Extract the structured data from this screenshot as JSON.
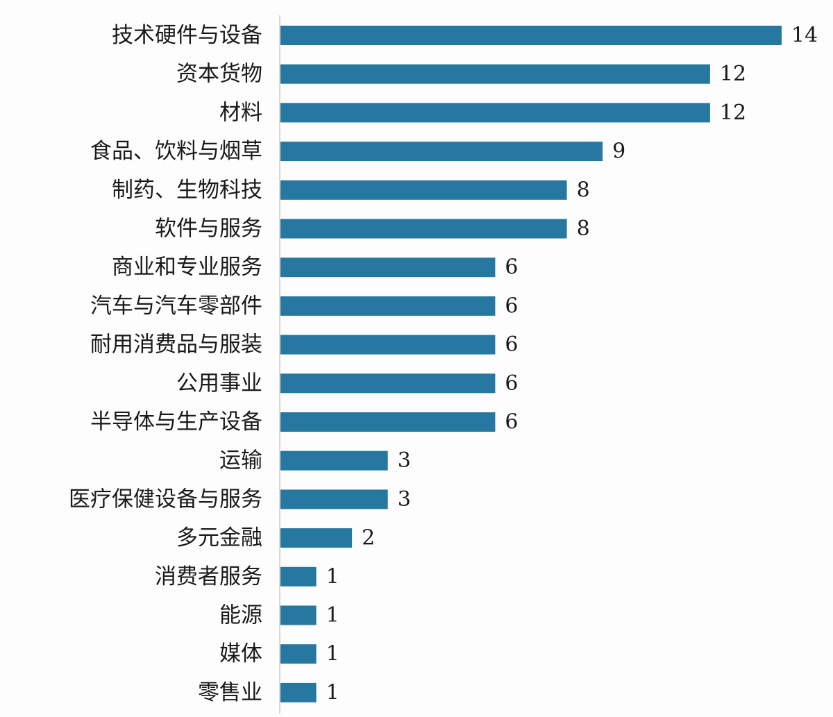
{
  "chart_data": {
    "type": "bar",
    "orientation": "horizontal",
    "title": "",
    "xlabel": "",
    "ylabel": "",
    "categories": [
      "技术硬件与设备",
      "资本货物",
      "材料",
      "食品、饮料与烟草",
      "制药、生物科技",
      "软件与服务",
      "商业和专业服务",
      "汽车与汽车零部件",
      "耐用消费品与服装",
      "公用事业",
      "半导体与生产设备",
      "运输",
      "医疗保健设备与服务",
      "多元金融",
      "消费者服务",
      "能源",
      "媒体",
      "零售业"
    ],
    "values": [
      14,
      12,
      12,
      9,
      8,
      8,
      6,
      6,
      6,
      6,
      6,
      3,
      3,
      2,
      1,
      1,
      1,
      1
    ],
    "xlim": [
      0,
      14
    ],
    "grid": false,
    "legend": "none",
    "data_labels": true,
    "bar_color": "#2678a0",
    "axis_color": "#d9d9d9"
  }
}
